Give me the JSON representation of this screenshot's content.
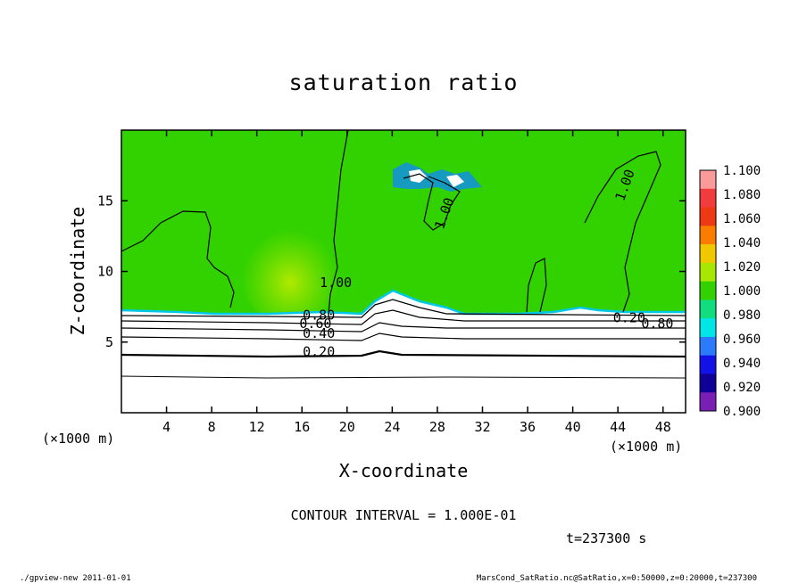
{
  "chart_data": {
    "type": "heatmap",
    "title": "saturation ratio",
    "xlabel": "X-coordinate",
    "ylabel": "Z-coordinate",
    "x_unit_label": "(×1000 m)",
    "y_unit_label": "(×1000 m)",
    "xlim": [
      0,
      50
    ],
    "ylim": [
      0,
      20
    ],
    "x_ticks": [
      4,
      8,
      12,
      16,
      20,
      24,
      28,
      32,
      36,
      40,
      44,
      48
    ],
    "y_ticks": [
      5,
      10,
      15
    ],
    "colorbar": {
      "levels": [
        "1.100",
        "1.080",
        "1.060",
        "1.040",
        "1.020",
        "1.000",
        "0.980",
        "0.960",
        "0.940",
        "0.920",
        "0.900"
      ],
      "colors": [
        "#fa9a9a",
        "#f03c3c",
        "#ee3a14",
        "#fa7d00",
        "#f0c800",
        "#a6e600",
        "#32d200",
        "#11dc7f",
        "#00e6e6",
        "#2b7bff",
        "#1212e6",
        "#0f0096",
        "#7a1fb4"
      ]
    },
    "contours": [
      {
        "label": "1.00",
        "x": 19.0,
        "y": 8.9
      },
      {
        "label": "1.00",
        "x": 29.0,
        "y": 14.0
      },
      {
        "label": "1.00",
        "x": 45.0,
        "y": 16.0
      },
      {
        "label": "0.80",
        "x": 17.5,
        "y": 6.6
      },
      {
        "label": "0.60",
        "x": 17.2,
        "y": 6.0
      },
      {
        "label": "0.40",
        "x": 17.5,
        "y": 5.3
      },
      {
        "label": "0.20",
        "x": 17.5,
        "y": 4.0
      },
      {
        "label": "0.80",
        "x": 47.5,
        "y": 6.0
      },
      {
        "label": "0.20",
        "x": 45.0,
        "y": 6.4
      }
    ],
    "contour_interval_text": "CONTOUR INTERVAL = 1.000E-01",
    "time_text": "t=237300 s"
  },
  "footer": {
    "left": "./gpview-new  2011-01-01",
    "right": "MarsCond_SatRatio.nc@SatRatio,x=0:50000,z=0:20000,t=237300"
  },
  "colors": {
    "field": "#32d200",
    "warm": "#a6e600",
    "dry": "#ffffff",
    "line": "#000000"
  }
}
